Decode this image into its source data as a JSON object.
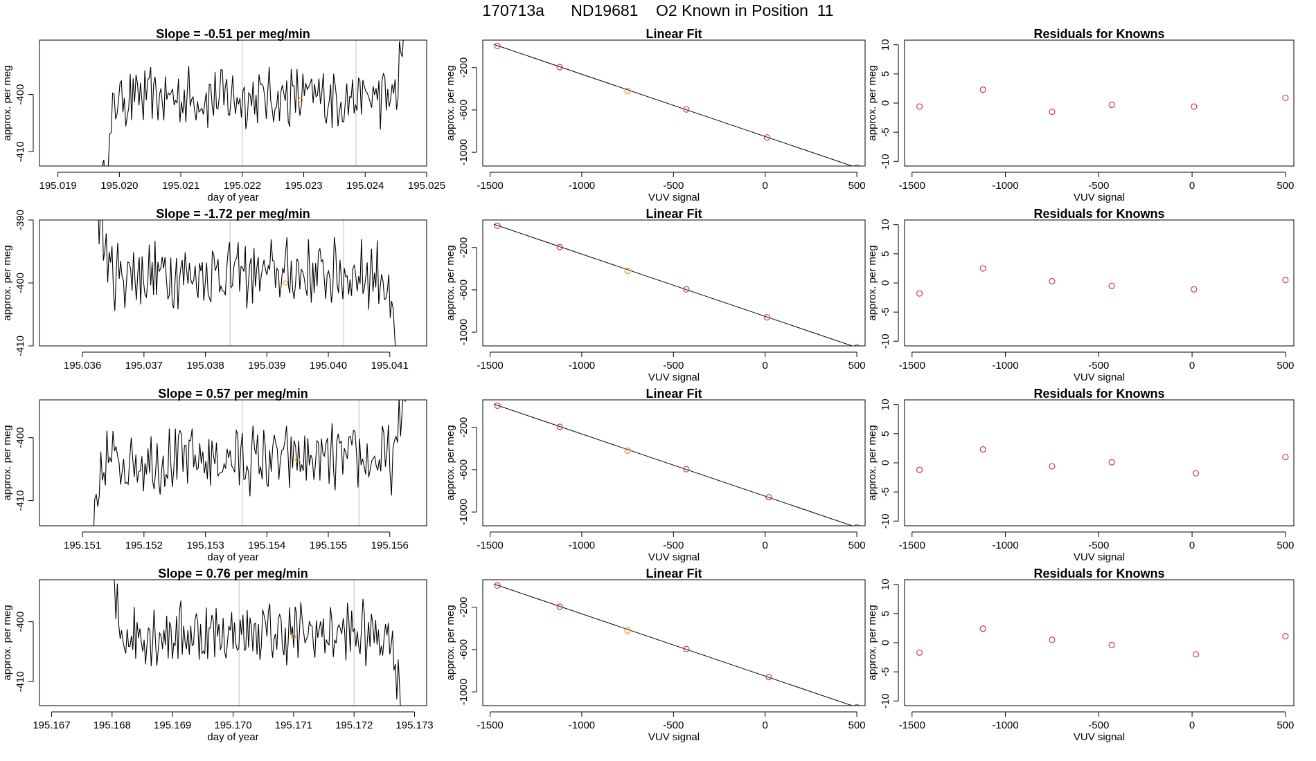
{
  "page": {
    "title": "170713a      ND19681    O2 Known in Position  11"
  },
  "colors": {
    "known": "#cd3b3b",
    "unknown": "#e0a030",
    "line": "#000000",
    "vline": "#c8c8c8"
  },
  "chart_data": [
    {
      "type": "line",
      "panel": "time",
      "row": 0,
      "title": "Slope =  -0.51  per meg/min",
      "xlabel": "day of year",
      "ylabel": "approx. per meg",
      "xlim": [
        195.0187,
        195.025
      ],
      "ylim": [
        -412.5,
        -390.5
      ],
      "xticks": [
        195.019,
        195.02,
        195.021,
        195.022,
        195.023,
        195.024,
        195.025
      ],
      "xtick_labels": [
        "195.019",
        "195.020",
        "195.021",
        "195.022",
        "195.023",
        "195.024",
        "195.025"
      ],
      "yticks": [
        -410,
        -400
      ],
      "ytick_labels": [
        "-410",
        "-400"
      ],
      "x_start": 195.0197,
      "x_end": 195.0247,
      "level": -400.5,
      "vlines": [
        195.022,
        195.02385
      ],
      "marker": [
        195.02295,
        -401.0
      ]
    },
    {
      "type": "line",
      "panel": "time",
      "row": 1,
      "title": "Slope =  -1.72  per meg/min",
      "xlabel": "",
      "ylabel": "approx. per meg",
      "xlim": [
        195.0353,
        195.0416
      ],
      "ylim": [
        -410,
        -390
      ],
      "xticks": [
        195.036,
        195.037,
        195.038,
        195.039,
        195.04,
        195.041
      ],
      "xtick_labels": [
        "195.036",
        "195.037",
        "195.038",
        "195.039",
        "195.040",
        "195.041"
      ],
      "yticks": [
        -410,
        -400,
        -390
      ],
      "ytick_labels": [
        "-410",
        "-400",
        "-390"
      ],
      "x_start": 195.0362,
      "x_end": 195.0411,
      "level": -398.5,
      "vlines": [
        195.0384,
        195.04025
      ],
      "marker": [
        195.0393,
        -400.0
      ]
    },
    {
      "type": "line",
      "panel": "time",
      "row": 2,
      "title": "Slope =  0.57  per meg/min",
      "xlabel": "day of year",
      "ylabel": "approx. per meg",
      "xlim": [
        195.1503,
        195.1566
      ],
      "ylim": [
        -414,
        -394
      ],
      "xticks": [
        195.151,
        195.152,
        195.153,
        195.154,
        195.155,
        195.156
      ],
      "xtick_labels": [
        "195.151",
        "195.152",
        "195.153",
        "195.154",
        "195.155",
        "195.156"
      ],
      "yticks": [
        -410,
        -400
      ],
      "ytick_labels": [
        "-410",
        "-400"
      ],
      "x_start": 195.1511,
      "x_end": 195.1563,
      "level": -403.5,
      "vlines": [
        195.1536,
        195.1555
      ],
      "marker": [
        195.1545,
        -403.5
      ]
    },
    {
      "type": "line",
      "panel": "time",
      "row": 3,
      "title": "Slope =  0.76  per meg/min",
      "xlabel": "day of year",
      "ylabel": "approx. per meg",
      "xlim": [
        195.1668,
        195.1732
      ],
      "ylim": [
        -414,
        -393
      ],
      "xticks": [
        195.167,
        195.168,
        195.169,
        195.17,
        195.171,
        195.172,
        195.173
      ],
      "xtick_labels": [
        "195.167",
        "195.168",
        "195.169",
        "195.170",
        "195.171",
        "195.172",
        "195.173"
      ],
      "yticks": [
        -410,
        -400
      ],
      "ytick_labels": [
        "-410",
        "-400"
      ],
      "x_start": 195.1679,
      "x_end": 195.1728,
      "level": -402.0,
      "vlines": [
        195.1701,
        195.172
      ],
      "marker": [
        195.171,
        -402.5
      ]
    },
    {
      "type": "scatter",
      "panel": "fit",
      "row": 0,
      "title": "Linear Fit",
      "xlabel": "VUV signal",
      "ylabel": "approx. per meg",
      "xlim": [
        -1540,
        545
      ],
      "ylim": [
        -1130,
        60
      ],
      "xticks": [
        -1500,
        -1000,
        -500,
        0,
        500
      ],
      "xtick_labels": [
        "-1500",
        "-1000",
        "-500",
        "0",
        "500"
      ],
      "yticks": [
        -1000,
        -600,
        -200
      ],
      "ytick_labels": [
        "-1000",
        "-600",
        "-200"
      ],
      "knowns": [
        [
          -1460,
          5
        ],
        [
          -1120,
          -195
        ],
        [
          -430,
          -595
        ],
        [
          10,
          -860
        ],
        [
          500,
          -1145
        ]
      ],
      "unknowns": [
        [
          -750,
          -420
        ]
      ],
      "fit": [
        [
          -1480,
          20
        ],
        [
          500,
          -1145
        ]
      ]
    },
    {
      "type": "scatter",
      "panel": "fit",
      "row": 1,
      "title": "Linear Fit",
      "xlabel": "VUV signal",
      "ylabel": "approx. per meg",
      "xlim": [
        -1540,
        545
      ],
      "ylim": [
        -1130,
        60
      ],
      "xticks": [
        -1500,
        -1000,
        -500,
        0,
        500
      ],
      "xtick_labels": [
        "-1500",
        "-1000",
        "-500",
        "0",
        "500"
      ],
      "yticks": [
        -1000,
        -600,
        -200
      ],
      "ytick_labels": [
        "-1000",
        "-600",
        "-200"
      ],
      "knowns": [
        [
          -1460,
          5
        ],
        [
          -1120,
          -195
        ],
        [
          -430,
          -595
        ],
        [
          10,
          -860
        ],
        [
          500,
          -1145
        ]
      ],
      "unknowns": [
        [
          -750,
          -420
        ]
      ],
      "fit": [
        [
          -1480,
          20
        ],
        [
          500,
          -1145
        ]
      ]
    },
    {
      "type": "scatter",
      "panel": "fit",
      "row": 2,
      "title": "Linear Fit",
      "xlabel": "VUV signal",
      "ylabel": "approx. per meg",
      "xlim": [
        -1540,
        545
      ],
      "ylim": [
        -1130,
        60
      ],
      "xticks": [
        -1500,
        -1000,
        -500,
        0,
        500
      ],
      "xtick_labels": [
        "-1500",
        "-1000",
        "-500",
        "0",
        "500"
      ],
      "yticks": [
        -1000,
        -600,
        -200
      ],
      "ytick_labels": [
        "-1000",
        "-600",
        "-200"
      ],
      "knowns": [
        [
          -1460,
          5
        ],
        [
          -1120,
          -195
        ],
        [
          -430,
          -595
        ],
        [
          20,
          -860
        ],
        [
          500,
          -1145
        ]
      ],
      "unknowns": [
        [
          -750,
          -420
        ]
      ],
      "fit": [
        [
          -1480,
          20
        ],
        [
          500,
          -1145
        ]
      ]
    },
    {
      "type": "scatter",
      "panel": "fit",
      "row": 3,
      "title": "Linear Fit",
      "xlabel": "VUV signal",
      "ylabel": "approx. per meg",
      "xlim": [
        -1540,
        545
      ],
      "ylim": [
        -1130,
        60
      ],
      "xticks": [
        -1500,
        -1000,
        -500,
        0,
        500
      ],
      "xtick_labels": [
        "-1500",
        "-1000",
        "-500",
        "0",
        "500"
      ],
      "yticks": [
        -1000,
        -600,
        -200
      ],
      "ytick_labels": [
        "-1000",
        "-600",
        "-200"
      ],
      "knowns": [
        [
          -1460,
          5
        ],
        [
          -1120,
          -195
        ],
        [
          -430,
          -595
        ],
        [
          20,
          -860
        ],
        [
          500,
          -1145
        ]
      ],
      "unknowns": [
        [
          -750,
          -420
        ]
      ],
      "fit": [
        [
          -1480,
          20
        ],
        [
          500,
          -1145
        ]
      ]
    },
    {
      "type": "scatter",
      "panel": "resid",
      "row": 0,
      "title": "Residuals for Knowns",
      "xlabel": "VUV signal",
      "ylabel": "approx. per meg",
      "xlim": [
        -1540,
        545
      ],
      "ylim": [
        -10.8,
        10.8
      ],
      "xticks": [
        -1500,
        -1000,
        -500,
        0,
        500
      ],
      "xtick_labels": [
        "-1500",
        "-1000",
        "-500",
        "0",
        "500"
      ],
      "yticks": [
        -10,
        -5,
        0,
        5,
        10
      ],
      "ytick_labels": [
        "-10",
        "-5",
        "0",
        "5",
        "10"
      ],
      "points": [
        [
          -1460,
          -0.6
        ],
        [
          -1120,
          2.3
        ],
        [
          -750,
          -1.5
        ],
        [
          -430,
          -0.3
        ],
        [
          10,
          -0.6
        ],
        [
          500,
          0.9
        ]
      ]
    },
    {
      "type": "scatter",
      "panel": "resid",
      "row": 1,
      "title": "Residuals for Knowns",
      "xlabel": "VUV signal",
      "ylabel": "approx. per meg",
      "xlim": [
        -1540,
        545
      ],
      "ylim": [
        -10.8,
        10.8
      ],
      "xticks": [
        -1500,
        -1000,
        -500,
        0,
        500
      ],
      "xtick_labels": [
        "-1500",
        "-1000",
        "-500",
        "0",
        "500"
      ],
      "yticks": [
        -10,
        -5,
        0,
        5,
        10
      ],
      "ytick_labels": [
        "-10",
        "-5",
        "0",
        "5",
        "10"
      ],
      "points": [
        [
          -1460,
          -1.8
        ],
        [
          -1120,
          2.5
        ],
        [
          -750,
          0.3
        ],
        [
          -430,
          -0.5
        ],
        [
          10,
          -1.1
        ],
        [
          500,
          0.5
        ]
      ]
    },
    {
      "type": "scatter",
      "panel": "resid",
      "row": 2,
      "title": "Residuals for Knowns",
      "xlabel": "VUV signal",
      "ylabel": "approx. per meg",
      "xlim": [
        -1540,
        545
      ],
      "ylim": [
        -10.8,
        10.8
      ],
      "xticks": [
        -1500,
        -1000,
        -500,
        0,
        500
      ],
      "xtick_labels": [
        "-1500",
        "-1000",
        "-500",
        "0",
        "500"
      ],
      "yticks": [
        -10,
        -5,
        0,
        5,
        10
      ],
      "ytick_labels": [
        "-10",
        "-5",
        "0",
        "5",
        "10"
      ],
      "points": [
        [
          -1460,
          -1.2
        ],
        [
          -1120,
          2.3
        ],
        [
          -750,
          -0.6
        ],
        [
          -430,
          0.1
        ],
        [
          20,
          -1.8
        ],
        [
          500,
          1.0
        ]
      ]
    },
    {
      "type": "scatter",
      "panel": "resid",
      "row": 3,
      "title": "Residuals for Knowns",
      "xlabel": "VUV signal",
      "ylabel": "approx. per meg",
      "xlim": [
        -1540,
        545
      ],
      "ylim": [
        -10.8,
        10.8
      ],
      "xticks": [
        -1500,
        -1000,
        -500,
        0,
        500
      ],
      "xtick_labels": [
        "-1500",
        "-1000",
        "-500",
        "0",
        "500"
      ],
      "yticks": [
        -10,
        -5,
        0,
        5,
        10
      ],
      "ytick_labels": [
        "-10",
        "-5",
        "0",
        "5",
        "10"
      ],
      "points": [
        [
          -1460,
          -1.7
        ],
        [
          -1120,
          2.4
        ],
        [
          -750,
          0.5
        ],
        [
          -430,
          -0.4
        ],
        [
          20,
          -2.0
        ],
        [
          500,
          1.1
        ]
      ]
    }
  ]
}
